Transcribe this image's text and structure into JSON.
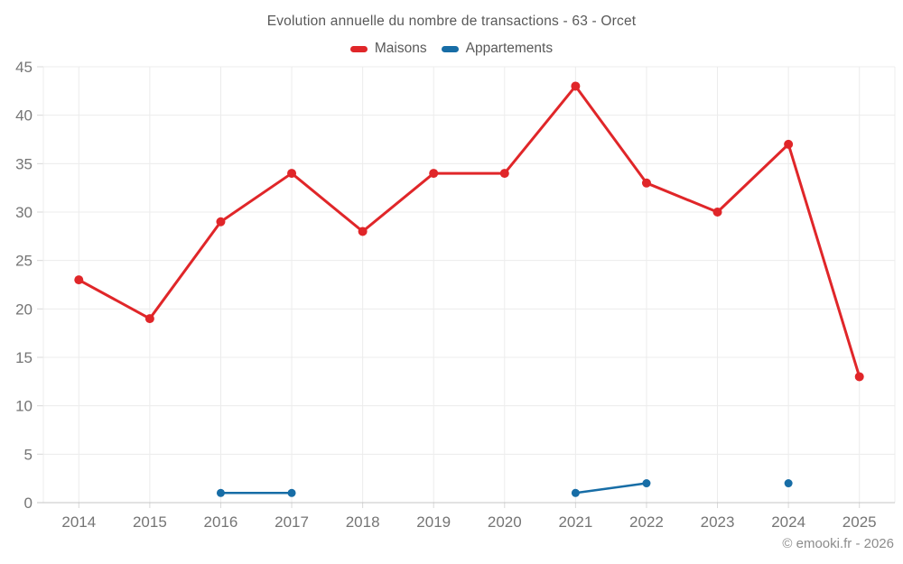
{
  "chart_data": {
    "type": "line",
    "title": "Evolution annuelle du nombre de transactions - 63 - Orcet",
    "categories": [
      "2014",
      "2015",
      "2016",
      "2017",
      "2018",
      "2019",
      "2020",
      "2021",
      "2022",
      "2023",
      "2024",
      "2025"
    ],
    "series": [
      {
        "name": "Maisons",
        "color": "#e02629",
        "values": [
          23,
          19,
          29,
          34,
          28,
          34,
          34,
          43,
          33,
          30,
          37,
          13
        ]
      },
      {
        "name": "Appartements",
        "color": "#176da6",
        "values": [
          null,
          null,
          1,
          1,
          null,
          null,
          null,
          1,
          2,
          null,
          2,
          null
        ]
      }
    ],
    "xlabel": "",
    "ylabel": "",
    "ylim": [
      0,
      45
    ],
    "yticks": [
      0,
      5,
      10,
      15,
      20,
      25,
      30,
      35,
      40,
      45
    ],
    "grid": true,
    "legend_position": "top"
  },
  "footer": {
    "copyright": "© emooki.fr - 2026"
  },
  "style": {
    "grid_color": "#ececec",
    "axis_line_color": "#c4c4c4",
    "tick_color": "#d8d8d8",
    "axis_label_color": "#757575",
    "title_color": "#595959",
    "footer_color": "#8c8c8c",
    "background": "#ffffff"
  }
}
